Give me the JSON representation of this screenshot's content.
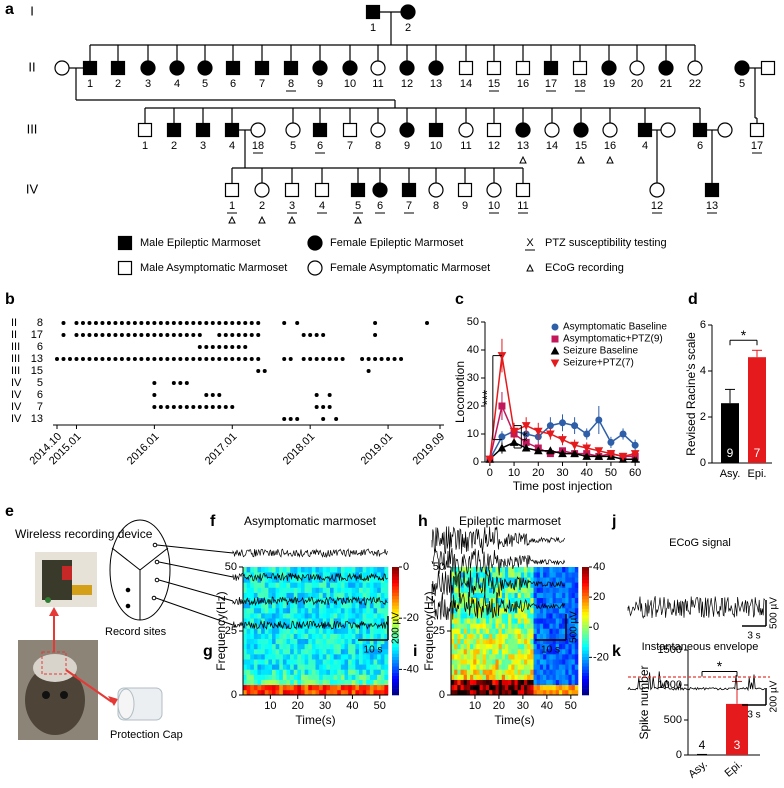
{
  "panel_labels": {
    "a": "a",
    "e": "e",
    "f": "f",
    "h": "h",
    "j": "j"
  },
  "pedigree": {
    "generations": [
      {
        "name": "I",
        "members": [
          {
            "label": "1",
            "sex": "male",
            "epileptic": true
          },
          {
            "label": "2",
            "sex": "female",
            "epileptic": true
          }
        ]
      },
      {
        "name": "II",
        "members": [
          {
            "label": null,
            "sex": "female",
            "epileptic": false
          },
          {
            "label": "1",
            "sex": "male",
            "epileptic": true
          },
          {
            "label": "2",
            "sex": "male",
            "epileptic": true
          },
          {
            "label": "3",
            "sex": "female",
            "epileptic": true
          },
          {
            "label": "4",
            "sex": "female",
            "epileptic": true
          },
          {
            "label": "5",
            "sex": "female",
            "epileptic": true
          },
          {
            "label": "6",
            "sex": "male",
            "epileptic": true
          },
          {
            "label": "7",
            "sex": "male",
            "epileptic": true
          },
          {
            "label": "8",
            "sex": "male",
            "epileptic": true,
            "ptz": true
          },
          {
            "label": "9",
            "sex": "female",
            "epileptic": true
          },
          {
            "label": "10",
            "sex": "female",
            "epileptic": true
          },
          {
            "label": "11",
            "sex": "female",
            "epileptic": false
          },
          {
            "label": "12",
            "sex": "female",
            "epileptic": true
          },
          {
            "label": "13",
            "sex": "female",
            "epileptic": true
          },
          {
            "label": "14",
            "sex": "male",
            "epileptic": false
          },
          {
            "label": "15",
            "sex": "male",
            "epileptic": false,
            "ptz": true
          },
          {
            "label": "16",
            "sex": "male",
            "epileptic": false
          },
          {
            "label": "17",
            "sex": "male",
            "epileptic": true,
            "ptz": true
          },
          {
            "label": "18",
            "sex": "male",
            "epileptic": false,
            "ptz": true
          },
          {
            "label": "19",
            "sex": "female",
            "epileptic": true
          },
          {
            "label": "20",
            "sex": "female",
            "epileptic": false
          },
          {
            "label": "21",
            "sex": "female",
            "epileptic": true
          },
          {
            "label": "22",
            "sex": "female",
            "epileptic": false
          },
          {
            "label": "5",
            "sex": "female",
            "epileptic": true
          },
          {
            "label": null,
            "sex": "male",
            "epileptic": false
          }
        ]
      },
      {
        "name": "III",
        "members": [
          {
            "label": "1",
            "sex": "male",
            "epileptic": false
          },
          {
            "label": "2",
            "sex": "male",
            "epileptic": true
          },
          {
            "label": "3",
            "sex": "male",
            "epileptic": true
          },
          {
            "label": "4",
            "sex": "male",
            "epileptic": true
          },
          {
            "label": "18",
            "sex": "female",
            "epileptic": false,
            "ptz": true
          },
          {
            "label": "5",
            "sex": "female",
            "epileptic": false
          },
          {
            "label": "6",
            "sex": "male",
            "epileptic": true,
            "ptz": true
          },
          {
            "label": "7",
            "sex": "male",
            "epileptic": false
          },
          {
            "label": "8",
            "sex": "female",
            "epileptic": false
          },
          {
            "label": "9",
            "sex": "female",
            "epileptic": true
          },
          {
            "label": "10",
            "sex": "male",
            "epileptic": true
          },
          {
            "label": "11",
            "sex": "female",
            "epileptic": false
          },
          {
            "label": "12",
            "sex": "male",
            "epileptic": false
          },
          {
            "label": "13",
            "sex": "female",
            "epileptic": true,
            "ecog": true
          },
          {
            "label": "14",
            "sex": "female",
            "epileptic": false
          },
          {
            "label": "15",
            "sex": "female",
            "epileptic": true,
            "ecog": true
          },
          {
            "label": "16",
            "sex": "female",
            "epileptic": false,
            "ecog": true
          },
          {
            "label": "4",
            "sex": "male",
            "epileptic": true
          },
          {
            "label": null,
            "sex": "female",
            "epileptic": false
          },
          {
            "label": "6",
            "sex": "male",
            "epileptic": true
          },
          {
            "label": null,
            "sex": "female",
            "epileptic": false
          },
          {
            "label": "17",
            "sex": "male",
            "epileptic": false,
            "ptz": true
          }
        ]
      },
      {
        "name": "IV",
        "members": [
          {
            "label": "1",
            "sex": "male",
            "epileptic": false,
            "ptz": true,
            "ecog": true
          },
          {
            "label": "2",
            "sex": "female",
            "epileptic": false,
            "ecog": true
          },
          {
            "label": "3",
            "sex": "male",
            "epileptic": false,
            "ptz": true,
            "ecog": true
          },
          {
            "label": "4",
            "sex": "male",
            "epileptic": false,
            "ptz": true
          },
          {
            "label": "5",
            "sex": "male",
            "epileptic": true,
            "ptz": true,
            "ecog": true
          },
          {
            "label": "6",
            "sex": "female",
            "epileptic": true,
            "ptz": true
          },
          {
            "label": "7",
            "sex": "male",
            "epileptic": true,
            "ptz": true
          },
          {
            "label": "8",
            "sex": "female",
            "epileptic": false
          },
          {
            "label": "9",
            "sex": "male",
            "epileptic": false
          },
          {
            "label": "10",
            "sex": "female",
            "epileptic": false,
            "ptz": true
          },
          {
            "label": "11",
            "sex": "male",
            "epileptic": false,
            "ptz": true
          },
          {
            "label": "12",
            "sex": "female",
            "epileptic": false,
            "ptz": true
          },
          {
            "label": "13",
            "sex": "male",
            "epileptic": true,
            "ptz": true
          }
        ]
      }
    ],
    "legend": [
      {
        "text": "Male Epileptic Marmoset",
        "sex": "male",
        "epileptic": true
      },
      {
        "text": "Male Asymptomatic Marmoset",
        "sex": "male",
        "epileptic": false
      },
      {
        "text": "Female Epileptic Marmoset",
        "sex": "female",
        "epileptic": true
      },
      {
        "text": "Female Asymptomatic Marmoset",
        "sex": "female",
        "epileptic": false
      },
      {
        "text": "PTZ susceptibility testing",
        "symbol": "X"
      },
      {
        "text": "ECoG recording"
      }
    ]
  },
  "panel_e": {
    "title": "Wireless recording device",
    "sites": "Record sites",
    "cap": "Protection Cap"
  },
  "panel_f": {
    "title": "Asymptomatic marmoset",
    "time_scale": "10 s",
    "amp_scale": "200 µV"
  },
  "panel_h": {
    "title": "Epileptic marmoset",
    "time_scale": "10 s",
    "amp_scale": "500 µV"
  },
  "panel_j": {
    "signal": "ECoG signal",
    "envelope": "Instantaneous envelope",
    "signal_amp": "500 µV",
    "signal_time": "3 s",
    "envelope_amp": "200 µV",
    "envelope_time": "3 s"
  },
  "chart_data": [
    {
      "panel": "b",
      "type": "event",
      "xlim": [
        "2014.10",
        "2019.09"
      ],
      "xticks": [
        "2014.10",
        "2015.01",
        "2016.01",
        "2017.01",
        "2018.01",
        "2019.01",
        "2019.09"
      ],
      "rows": [
        {
          "generation": "II",
          "label": "8",
          "dates": [
            "2014.11",
            "2015.01",
            "2015.02",
            "2015.03",
            "2015.04",
            "2015.05",
            "2015.06",
            "2015.07",
            "2015.08",
            "2015.09",
            "2015.10",
            "2015.11",
            "2015.12",
            "2016.01",
            "2016.02",
            "2016.03",
            "2016.04",
            "2016.05",
            "2016.06",
            "2016.07",
            "2016.08",
            "2016.09",
            "2016.10",
            "2016.11",
            "2016.12",
            "2017.01",
            "2017.02",
            "2017.03",
            "2017.04",
            "2017.05",
            "2017.09",
            "2017.11",
            "2018.11",
            "2019.07"
          ]
        },
        {
          "generation": "II",
          "label": "17",
          "dates": [
            "2014.11",
            "2015.01",
            "2015.02",
            "2015.03",
            "2015.04",
            "2015.05",
            "2015.06",
            "2015.07",
            "2015.08",
            "2015.09",
            "2015.10",
            "2015.11",
            "2015.12",
            "2016.01",
            "2016.02",
            "2016.03",
            "2016.04",
            "2016.05",
            "2016.06",
            "2016.07",
            "2016.08",
            "2016.11",
            "2016.12",
            "2017.01",
            "2017.02",
            "2017.03",
            "2017.04",
            "2017.05",
            "2017.12",
            "2018.01",
            "2018.02",
            "2018.03",
            "2018.11"
          ]
        },
        {
          "generation": "III",
          "label": "6",
          "dates": [
            "2016.08",
            "2016.09",
            "2016.10",
            "2016.11",
            "2016.12",
            "2017.01",
            "2017.02",
            "2017.03"
          ]
        },
        {
          "generation": "III",
          "label": "13",
          "dates": [
            "2014.10",
            "2014.11",
            "2014.12",
            "2015.01",
            "2015.02",
            "2015.03",
            "2015.04",
            "2015.05",
            "2015.06",
            "2015.07",
            "2015.08",
            "2015.09",
            "2015.10",
            "2015.11",
            "2015.12",
            "2016.01",
            "2016.02",
            "2016.03",
            "2016.04",
            "2016.05",
            "2016.06",
            "2016.07",
            "2016.08",
            "2016.09",
            "2016.10",
            "2016.11",
            "2016.12",
            "2017.01",
            "2017.02",
            "2017.03",
            "2017.04",
            "2017.05",
            "2017.09",
            "2017.10",
            "2017.12",
            "2018.01",
            "2018.02",
            "2018.03",
            "2018.04",
            "2018.05",
            "2018.06",
            "2018.09",
            "2018.10",
            "2018.11",
            "2018.12",
            "2019.01",
            "2019.02",
            "2019.03"
          ]
        },
        {
          "generation": "III",
          "label": "15",
          "dates": [
            "2017.05",
            "2017.06",
            "2018.10"
          ]
        },
        {
          "generation": "IV",
          "label": "5",
          "dates": [
            "2016.01",
            "2016.04",
            "2016.05",
            "2016.06"
          ]
        },
        {
          "generation": "IV",
          "label": "6",
          "dates": [
            "2016.01",
            "2016.09",
            "2016.10",
            "2016.11",
            "2018.02",
            "2018.04"
          ]
        },
        {
          "generation": "IV",
          "label": "7",
          "dates": [
            "2016.01",
            "2016.02",
            "2016.03",
            "2016.04",
            "2016.05",
            "2016.06",
            "2016.07",
            "2016.08",
            "2016.09",
            "2016.10",
            "2016.11",
            "2016.12",
            "2017.01",
            "2018.02",
            "2018.03",
            "2018.04"
          ]
        },
        {
          "generation": "IV",
          "label": "13",
          "dates": [
            "2017.09",
            "2017.10",
            "2017.11",
            "2018.03",
            "2018.05"
          ]
        }
      ]
    },
    {
      "panel": "c",
      "type": "line",
      "xlabel": "Time post injection",
      "ylabel": "Locomotion",
      "x": [
        0,
        5,
        10,
        15,
        20,
        25,
        30,
        35,
        40,
        45,
        50,
        55,
        60
      ],
      "xlim": [
        -2,
        62
      ],
      "xticks": [
        0,
        10,
        20,
        30,
        40,
        50,
        60
      ],
      "ylim": [
        0,
        50
      ],
      "yticks": [
        0,
        10,
        20,
        30,
        40,
        50
      ],
      "series": [
        {
          "name": "Asymptomatic Baseline",
          "color": "#2e5fa8",
          "marker": "circle",
          "values": [
            1,
            9,
            11,
            10,
            9,
            13,
            14,
            13,
            10,
            15,
            7,
            10,
            6
          ],
          "errors": [
            0.5,
            2,
            2,
            2,
            2,
            3,
            3,
            3,
            2,
            5,
            2,
            2,
            2
          ]
        },
        {
          "name": "Asymptomatic+PTZ(9)",
          "color": "#c2185b",
          "marker": "square",
          "values": [
            1,
            20,
            10,
            7,
            5,
            3,
            4,
            3,
            3,
            2,
            3,
            2,
            2
          ],
          "errors": [
            0.5,
            5,
            3,
            2,
            2,
            1,
            1,
            1,
            1,
            1,
            1,
            1,
            1
          ]
        },
        {
          "name": "Seizure Baseline",
          "color": "#000000",
          "marker": "triangle",
          "values": [
            1,
            5,
            7,
            5,
            4,
            4,
            3,
            3,
            2,
            2,
            2,
            1,
            1
          ],
          "errors": [
            0.5,
            2,
            2,
            1,
            1,
            1,
            1,
            1,
            1,
            1,
            1,
            0.5,
            0.5
          ]
        },
        {
          "name": "Seizure+PTZ(7)",
          "color": "#e41a1c",
          "marker": "triangle-down",
          "values": [
            1,
            38,
            11,
            13,
            11,
            10,
            8,
            6,
            5,
            4,
            3,
            2,
            3
          ],
          "errors": [
            0.5,
            6,
            3,
            3,
            3,
            2,
            2,
            2,
            2,
            1,
            1,
            1,
            1
          ]
        }
      ],
      "annotations": [
        "***",
        "**"
      ]
    },
    {
      "panel": "d",
      "type": "bar",
      "ylabel": "Revised Racine's scale",
      "categories": [
        "Asy.",
        "Epi."
      ],
      "values": [
        2.6,
        4.6
      ],
      "errors": [
        0.6,
        0.3
      ],
      "colors": [
        "#000000",
        "#e41a1c"
      ],
      "n_labels": [
        "9",
        "7"
      ],
      "ylim": [
        0,
        6
      ],
      "yticks": [
        0,
        2,
        4,
        6
      ],
      "annotation": "*"
    },
    {
      "panel": "g",
      "type": "heatmap",
      "xlabel": "Time(s)",
      "ylabel": "Frequency(Hz)",
      "xlim": [
        0,
        53
      ],
      "xticks": [
        10,
        20,
        30,
        40,
        50
      ],
      "ylim": [
        0,
        50
      ],
      "yticks": [
        0,
        25,
        50
      ],
      "clim": [
        -50,
        0
      ],
      "cticks": [
        0,
        -20,
        -40
      ]
    },
    {
      "panel": "i",
      "type": "heatmap",
      "xlabel": "Time(s)",
      "ylabel": "Frequency(Hz)",
      "xlim": [
        0,
        53
      ],
      "xticks": [
        10,
        20,
        30,
        40,
        50
      ],
      "ylim": [
        0,
        50
      ],
      "yticks": [
        0,
        25,
        50
      ],
      "clim": [
        -45,
        40
      ],
      "cticks": [
        40,
        20,
        0,
        -20
      ]
    },
    {
      "panel": "k",
      "type": "bar",
      "ylabel": "Spike number",
      "categories": [
        "Asy.",
        "Epi."
      ],
      "values": [
        5,
        730
      ],
      "errors": [
        3,
        320
      ],
      "colors": [
        "#000000",
        "#e41a1c"
      ],
      "n_labels": [
        "4",
        "3"
      ],
      "ylim": [
        0,
        1500
      ],
      "yticks": [
        0,
        500,
        1000,
        1500
      ],
      "annotation": "*"
    }
  ]
}
